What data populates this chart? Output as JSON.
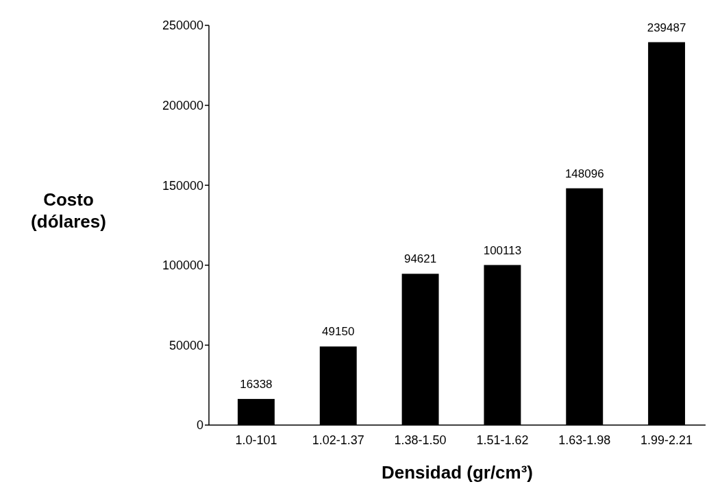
{
  "chart_data": {
    "type": "bar",
    "xlabel": "Densidad (gr/cm³)",
    "ylabel": "Costo\n(dólares)",
    "categories": [
      "1.0-101",
      "1.02-1.37",
      "1.38-1.50",
      "1.51-1.62",
      "1.63-1.98",
      "1.99-2.21"
    ],
    "values": [
      16338,
      49150,
      94621,
      100113,
      148096,
      239487
    ],
    "color": "#000000",
    "ylim": [
      0,
      250000
    ],
    "yticks": [
      0,
      50000,
      100000,
      150000,
      200000,
      250000
    ],
    "data_labels": true
  }
}
